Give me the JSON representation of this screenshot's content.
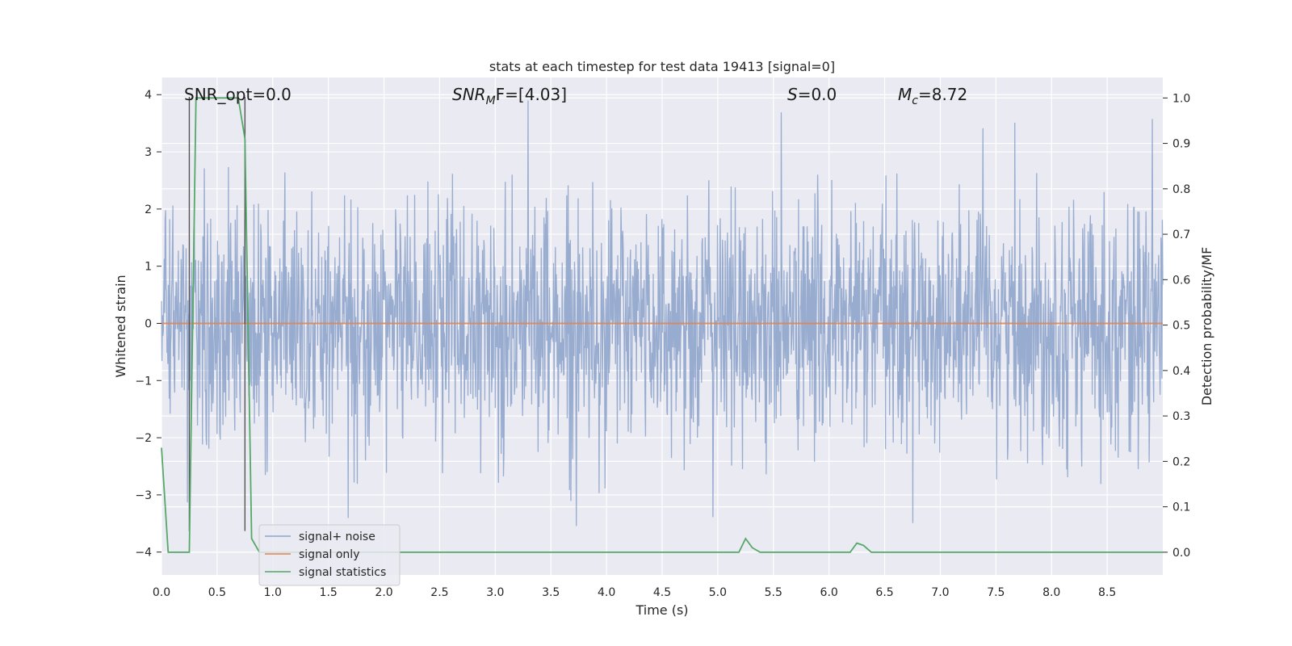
{
  "chart_data": {
    "type": "line",
    "title": "stats at each timestep for test data 19413 [signal=0]",
    "xlabel": "Time (s)",
    "ylabel": "Whitened strain",
    "ylabel_right": "Detection probability/MF",
    "xlim": [
      0,
      9
    ],
    "ylim": [
      -4.4,
      4.3
    ],
    "ylim_right": [
      -0.05,
      1.045
    ],
    "x_ticks": [
      "0.0",
      "0.5",
      "1.0",
      "1.5",
      "2.0",
      "2.5",
      "3.0",
      "3.5",
      "4.0",
      "4.5",
      "5.0",
      "5.5",
      "6.0",
      "6.5",
      "7.0",
      "7.5",
      "8.0",
      "8.5"
    ],
    "y_ticks": [
      "4",
      "3",
      "2",
      "1",
      "0",
      "−1",
      "−2",
      "−3",
      "−4"
    ],
    "y_ticks_right": [
      "1.0",
      "0.9",
      "0.8",
      "0.7",
      "0.6",
      "0.5",
      "0.4",
      "0.3",
      "0.2",
      "0.1",
      "0.0"
    ],
    "grid": true,
    "legend_position": "bottom-left",
    "annotations": {
      "snr_opt": "SNR_opt=0.0",
      "snr_mf_base": "SNR",
      "snr_mf_sub": "M",
      "snr_mf_rest": "F=[4.03]",
      "s_sym": "S",
      "s_val": "=0.0",
      "mc_sym": "M",
      "mc_sub": "c",
      "mc_val": "=8.72"
    },
    "vertical_lines_x": [
      0.25,
      0.75
    ],
    "series": [
      {
        "name": "signal+ noise",
        "color": "#8fa5cc",
        "description_values": "noise-like whitened strain, approx. within ±2.5, peaks near 3.9 and −4.0"
      },
      {
        "name": "signal only",
        "color": "#dd8452",
        "x": [
          0,
          9
        ],
        "y": [
          0,
          0
        ]
      },
      {
        "name": "signal statistics",
        "color": "#55a868",
        "axis": "right",
        "x": [
          0.0,
          0.06,
          0.25,
          0.31,
          0.69,
          0.75,
          0.81,
          0.88,
          1.0,
          5.19,
          5.25,
          5.31,
          5.38,
          6.19,
          6.25,
          6.31,
          6.38,
          9.0
        ],
        "y": [
          0.23,
          0.0,
          0.0,
          1.0,
          1.0,
          0.91,
          0.03,
          0.0,
          0.0,
          0.0,
          0.03,
          0.01,
          0.0,
          0.0,
          0.02,
          0.015,
          0.0,
          0.0
        ]
      }
    ]
  }
}
